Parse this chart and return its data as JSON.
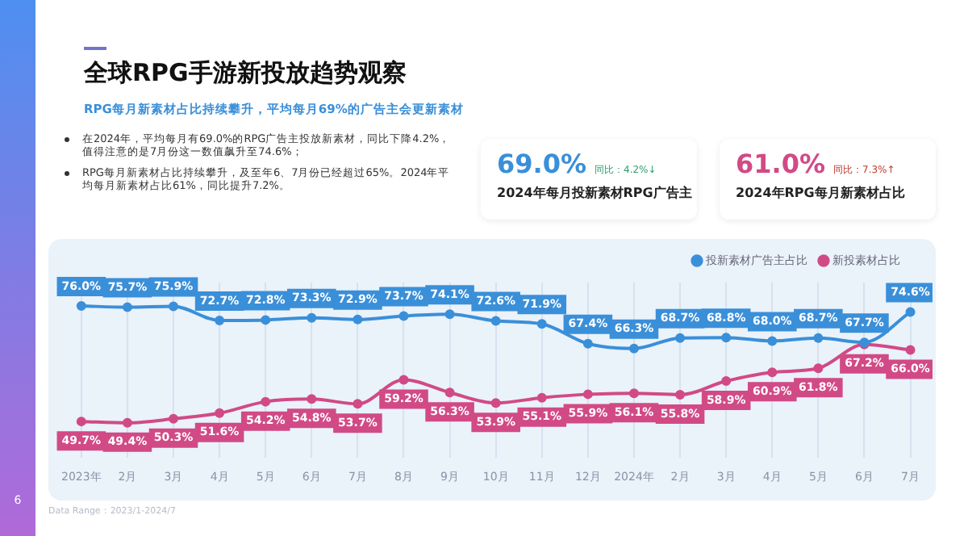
{
  "chart_data": {
    "type": "line",
    "title": "全球RPG手游新投放趋势观察",
    "subtitle": "RPG每月新素材占比持续攀升，平均每月69%的广告主会更新素材",
    "categories": [
      "2023年",
      "2月",
      "3月",
      "4月",
      "5月",
      "6月",
      "7月",
      "8月",
      "9月",
      "10月",
      "11月",
      "12月",
      "2024年",
      "2月",
      "3月",
      "4月",
      "5月",
      "6月",
      "7月"
    ],
    "series": [
      {
        "name": "投新素材广告主占比",
        "color": "#3a8fd9",
        "values": [
          76.0,
          75.7,
          75.9,
          72.7,
          72.8,
          73.3,
          72.9,
          73.7,
          74.1,
          72.6,
          71.9,
          67.4,
          66.3,
          68.7,
          68.8,
          68.0,
          68.7,
          67.7,
          74.6
        ],
        "value_labels": [
          "76.0%",
          "75.7%",
          "75.9%",
          "72.7%",
          "72.8%",
          "73.3%",
          "72.9%",
          "73.7%",
          "74.1%",
          "72.6%",
          "71.9%",
          "67.4%",
          "66.3%",
          "68.7%",
          "68.8%",
          "68.0%",
          "68.7%",
          "67.7%",
          "74.6%"
        ]
      },
      {
        "name": "新投素材占比",
        "color": "#d14a86",
        "values": [
          49.7,
          49.4,
          50.3,
          51.6,
          54.2,
          54.8,
          53.7,
          59.2,
          56.3,
          53.9,
          55.1,
          55.9,
          56.1,
          55.8,
          58.9,
          60.9,
          61.8,
          67.2,
          66.0
        ],
        "value_labels": [
          "49.7%",
          "49.4%",
          "50.3%",
          "51.6%",
          "54.2%",
          "54.8%",
          "53.7%",
          "59.2%",
          "56.3%",
          "53.9%",
          "55.1%",
          "55.9%",
          "56.1%",
          "55.8%",
          "58.9%",
          "60.9%",
          "61.8%",
          "67.2%",
          "66.0%"
        ]
      }
    ],
    "grid": "x",
    "legend": "top right",
    "marker": "circle",
    "line_style": "solid",
    "tick_labels": "x",
    "annotations": [
      "在2024年，平均每月有69.0%的RPG广告主投放新素材，同比下降4.2%，值得注意的是7月份这一数值飙升至74.6%；",
      "RPG每月新素材占比持续攀升，及至年6、7月份已经超过65%。2024年平均每月新素材占比61%，同比提升7.2%。",
      "69.0%",
      "同比：4.2%↓",
      "2024年每月投新素材RPG广告主",
      "61.0%",
      "同比：7.3%↑",
      "2024年RPG每月新素材占比",
      "Data Range：2023/1-2024/7",
      "6"
    ]
  }
}
